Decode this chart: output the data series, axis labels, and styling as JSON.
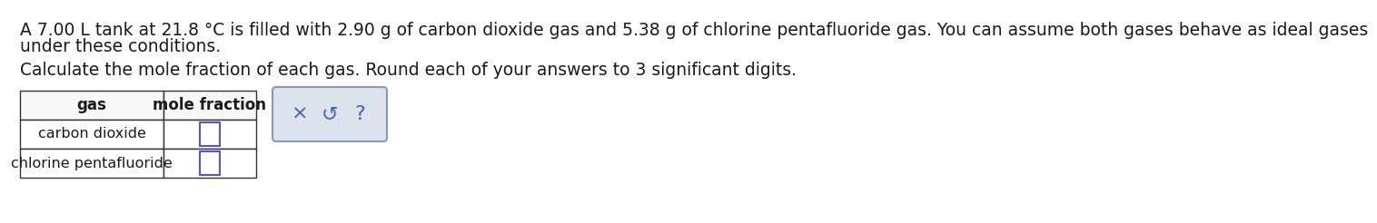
{
  "title_line1": "A 7.00 L tank at 21.8 °C is filled with 2.90 g of carbon dioxide gas and 5.38 g of chlorine pentafluoride gas. You can assume both gases behave as ideal gases",
  "title_line2": "under these conditions.",
  "instruction": "Calculate the mole fraction of each gas. Round each of your answers to 3 significant digits.",
  "col1_header": "gas",
  "col2_header": "mole fraction",
  "row1_label": "carbon dioxide",
  "row2_label": "chlorine pentafluoride",
  "symbol_x": "×",
  "symbol_s": "↺",
  "symbol_q": "?",
  "bg_color": "#ffffff",
  "text_color": "#1a1a1a",
  "input_box_color": "#5555cc",
  "symbol_box_fill": "#dde3ec",
  "symbol_box_border": "#8899bb",
  "symbol_color": "#4466aa",
  "font_size_body": 13.5,
  "font_size_table_header": 12,
  "font_size_table_body": 11.5,
  "font_size_symbol": 16
}
